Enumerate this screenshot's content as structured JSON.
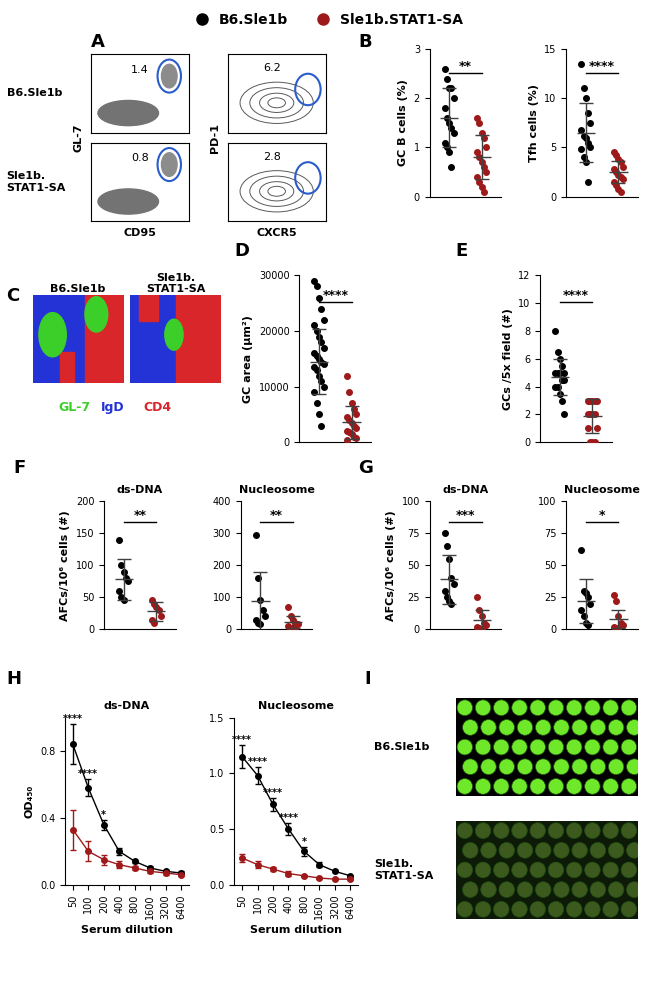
{
  "legend": {
    "legend": "upper center",
    "items": [
      {
        "name": "B6.Sle1b",
        "color": "#000000"
      },
      {
        "name": "Sle1b.STAT1-SA",
        "color": "#9e1a1a"
      }
    ]
  },
  "panel_A": {
    "label": "A",
    "row_labels": [
      "B6.Sle1b",
      "Sle1b.\nSTAT1-SA"
    ],
    "plots": [
      {
        "xlabel": "CD95",
        "ylabel": "GL-7",
        "gates": [
          1.4,
          0.8
        ]
      },
      {
        "xlabel": "CXCR5",
        "ylabel": "PD-1",
        "gates": [
          6.2,
          2.8
        ]
      }
    ]
  },
  "panel_C": {
    "label": "C",
    "titles": [
      "B6.Sle1b",
      "Sle1b.\nSTAT1-SA"
    ],
    "stains": [
      {
        "name": "GL-7",
        "color": "#3ccf2a"
      },
      {
        "name": "IgD",
        "color": "#2433d6"
      },
      {
        "name": "CD4",
        "color": "#d8262a"
      }
    ]
  },
  "panel_I": {
    "label": "I",
    "row_labels": [
      "B6.Sle1b",
      "Sle1b.\nSTAT1-SA"
    ]
  },
  "chart_data": [
    {
      "panel": "B",
      "type": "scatter",
      "ylabel": "GC B cells (%)",
      "ylim": [
        0,
        3
      ],
      "yticks": [
        0,
        1,
        2,
        3
      ],
      "tick_labels": "y",
      "significance": "**",
      "series": [
        {
          "name": "B6.Sle1b",
          "color": "#000000",
          "values": [
            2.6,
            2.4,
            2.2,
            2.2,
            2.0,
            1.8,
            1.6,
            1.5,
            1.4,
            1.3,
            1.1,
            1.0,
            0.9,
            0.6
          ],
          "mean": 1.6,
          "sd": 0.6
        },
        {
          "name": "Sle1b.STAT1-SA",
          "color": "#9e1a1a",
          "values": [
            1.6,
            1.5,
            1.3,
            1.2,
            1.0,
            0.9,
            0.8,
            0.7,
            0.6,
            0.5,
            0.4,
            0.3,
            0.2,
            0.1
          ],
          "mean": 0.8,
          "sd": 0.45
        }
      ]
    },
    {
      "panel": "B",
      "type": "scatter",
      "ylabel": "Tfh cells (%)",
      "ylim": [
        0,
        15
      ],
      "yticks": [
        0,
        5,
        10,
        15
      ],
      "tick_labels": "y",
      "significance": "****",
      "series": [
        {
          "name": "B6.Sle1b",
          "color": "#000000",
          "values": [
            13.5,
            11,
            10,
            8.5,
            7.5,
            6.8,
            6.2,
            6,
            5.5,
            5,
            4.8,
            4,
            3.5,
            1.5
          ],
          "mean": 6.5,
          "sd": 3
        },
        {
          "name": "Sle1b.STAT1-SA",
          "color": "#9e1a1a",
          "values": [
            4.5,
            4.2,
            3.8,
            3.5,
            3,
            2.8,
            2.5,
            2.2,
            2,
            1.8,
            1.5,
            1.2,
            0.8,
            0.5
          ],
          "mean": 2.5,
          "sd": 1.1
        }
      ]
    },
    {
      "panel": "D",
      "type": "scatter",
      "ylabel": "GC area (µm²)",
      "ylim": [
        0,
        30000
      ],
      "yticks": [
        0,
        10000,
        20000,
        30000
      ],
      "tick_labels": "y",
      "significance": "****",
      "series": [
        {
          "name": "B6.Sle1b",
          "color": "#000000",
          "values": [
            29000,
            28000,
            26000,
            24000,
            22000,
            21000,
            20000,
            19000,
            18000,
            17000,
            16000,
            15500,
            15000,
            14500,
            14000,
            13500,
            13000,
            12000,
            11000,
            10000,
            9000,
            7000,
            5000,
            3000
          ],
          "mean": 14500,
          "sd": 5800
        },
        {
          "name": "Sle1b.STAT1-SA",
          "color": "#9e1a1a",
          "values": [
            12000,
            9000,
            7000,
            6000,
            5000,
            4500,
            4000,
            3500,
            3000,
            2500,
            2000,
            1800,
            1500,
            1000,
            800,
            500
          ],
          "mean": 3600,
          "sd": 3000
        }
      ]
    },
    {
      "panel": "E",
      "type": "scatter",
      "ylabel": "GCs /5x field (#)",
      "ylim": [
        0,
        12
      ],
      "yticks": [
        0,
        2,
        4,
        6,
        8,
        10,
        12
      ],
      "tick_labels": "y",
      "significance": "****",
      "series": [
        {
          "name": "B6.Sle1b",
          "color": "#000000",
          "values": [
            8,
            6.5,
            6,
            5.5,
            5,
            5,
            5,
            5,
            4.5,
            4.5,
            4,
            4,
            3.5,
            3,
            2
          ],
          "mean": 4.7,
          "sd": 1.3
        },
        {
          "name": "Sle1b.STAT1-SA",
          "color": "#9e1a1a",
          "values": [
            3,
            3,
            3,
            3,
            3,
            2,
            2,
            2,
            2,
            1,
            1,
            0,
            0,
            0
          ],
          "mean": 1.9,
          "sd": 1.2
        }
      ]
    },
    {
      "panel": "F",
      "type": "scatter",
      "title": "ds-DNA",
      "ylabel": "AFCs/10⁶ cells (#)",
      "ylim": [
        0,
        200
      ],
      "yticks": [
        0,
        50,
        100,
        150,
        200
      ],
      "tick_labels": "y",
      "significance": "**",
      "series": [
        {
          "name": "B6.Sle1b",
          "color": "#000000",
          "values": [
            140,
            100,
            90,
            80,
            75,
            60,
            50,
            45
          ],
          "mean": 78,
          "sd": 32
        },
        {
          "name": "Sle1b.STAT1-SA",
          "color": "#9e1a1a",
          "values": [
            45,
            40,
            35,
            30,
            20,
            15,
            10
          ],
          "mean": 28,
          "sd": 15
        }
      ]
    },
    {
      "panel": "F",
      "type": "scatter",
      "title": "Nucleosome",
      "ylim": [
        0,
        400
      ],
      "yticks": [
        0,
        100,
        200,
        300,
        400
      ],
      "tick_labels": "y",
      "significance": "**",
      "series": [
        {
          "name": "B6.Sle1b",
          "color": "#000000",
          "values": [
            295,
            160,
            90,
            60,
            40,
            30,
            20,
            15
          ],
          "mean": 88,
          "sd": 90
        },
        {
          "name": "Sle1b.STAT1-SA",
          "color": "#9e1a1a",
          "values": [
            70,
            40,
            30,
            20,
            15,
            10,
            5,
            5,
            5
          ],
          "mean": 22,
          "sd": 20
        }
      ]
    },
    {
      "panel": "G",
      "type": "scatter",
      "title": "ds-DNA",
      "ylabel": "AFCs/10⁶ cells (#)",
      "ylim": [
        0,
        100
      ],
      "yticks": [
        0,
        25,
        50,
        75,
        100
      ],
      "tick_labels": "y",
      "significance": "***",
      "series": [
        {
          "name": "B6.Sle1b",
          "color": "#000000",
          "values": [
            75,
            65,
            55,
            40,
            35,
            30,
            25,
            22,
            20
          ],
          "mean": 39,
          "sd": 19
        },
        {
          "name": "Sle1b.STAT1-SA",
          "color": "#9e1a1a",
          "values": [
            25,
            15,
            10,
            5,
            3,
            2,
            1,
            0
          ],
          "mean": 7,
          "sd": 8
        }
      ]
    },
    {
      "panel": "G",
      "type": "scatter",
      "title": "Nucleosome",
      "ylim": [
        0,
        100
      ],
      "yticks": [
        0,
        25,
        50,
        75,
        100
      ],
      "tick_labels": "y",
      "significance": "*",
      "series": [
        {
          "name": "B6.Sle1b",
          "color": "#000000",
          "values": [
            62,
            30,
            28,
            25,
            20,
            15,
            10,
            5,
            3
          ],
          "mean": 22,
          "sd": 17
        },
        {
          "name": "Sle1b.STAT1-SA",
          "color": "#9e1a1a",
          "values": [
            27,
            22,
            10,
            5,
            3,
            2,
            1,
            0
          ],
          "mean": 8,
          "sd": 7
        }
      ]
    },
    {
      "panel": "H",
      "type": "line",
      "title": "ds-DNA",
      "ylabel": "OD₄₅₀",
      "xlabel": "Serum dilution",
      "marker": "o",
      "categories": [
        "50",
        "100",
        "200",
        "400",
        "800",
        "1600",
        "3200",
        "6400"
      ],
      "ylim": [
        0,
        1.0
      ],
      "yticks": [
        {
          "value": 0,
          "label": "0.0"
        },
        {
          "value": 0.4,
          "label": "0.4"
        },
        {
          "value": 0.8,
          "label": "0.8"
        }
      ],
      "significance": [
        "****",
        "****",
        "*",
        null,
        null,
        null,
        null,
        null
      ],
      "series": [
        {
          "name": "B6.Sle1b",
          "color": "#000000",
          "values": [
            0.84,
            0.58,
            0.36,
            0.2,
            0.14,
            0.1,
            0.08,
            0.07
          ],
          "error": [
            0.12,
            0.05,
            0.03,
            0.02,
            0.01,
            0.01,
            0.01,
            0.01
          ]
        },
        {
          "name": "Sle1b.STAT1-SA",
          "color": "#9e1a1a",
          "values": [
            0.33,
            0.2,
            0.15,
            0.12,
            0.1,
            0.08,
            0.07,
            0.06
          ],
          "error": [
            0.12,
            0.06,
            0.03,
            0.02,
            0.01,
            0.01,
            0.01,
            0.01
          ]
        }
      ]
    },
    {
      "panel": "H",
      "type": "line",
      "title": "Nucleosome",
      "xlabel": "Serum dilution",
      "marker": "o",
      "categories": [
        "50",
        "100",
        "200",
        "400",
        "800",
        "1600",
        "3200",
        "6400"
      ],
      "ylim": [
        0,
        1.5
      ],
      "yticks": [
        {
          "value": 0,
          "label": "0.0"
        },
        {
          "value": 0.5,
          "label": "0.5"
        },
        {
          "value": 1.0,
          "label": "1.0"
        },
        {
          "value": 1.5,
          "label": "1.5"
        }
      ],
      "significance": [
        "****",
        "****",
        "****",
        "****",
        "*",
        null,
        null,
        null
      ],
      "series": [
        {
          "name": "B6.Sle1b",
          "color": "#000000",
          "values": [
            1.15,
            0.98,
            0.72,
            0.5,
            0.3,
            0.18,
            0.12,
            0.08
          ],
          "error": [
            0.1,
            0.08,
            0.06,
            0.05,
            0.04,
            0.02,
            0.01,
            0.01
          ]
        },
        {
          "name": "Sle1b.STAT1-SA",
          "color": "#9e1a1a",
          "values": [
            0.24,
            0.18,
            0.14,
            0.1,
            0.08,
            0.06,
            0.05,
            0.05
          ],
          "error": [
            0.04,
            0.03,
            0.02,
            0.02,
            0.01,
            0.01,
            0.01,
            0.01
          ]
        }
      ]
    }
  ]
}
